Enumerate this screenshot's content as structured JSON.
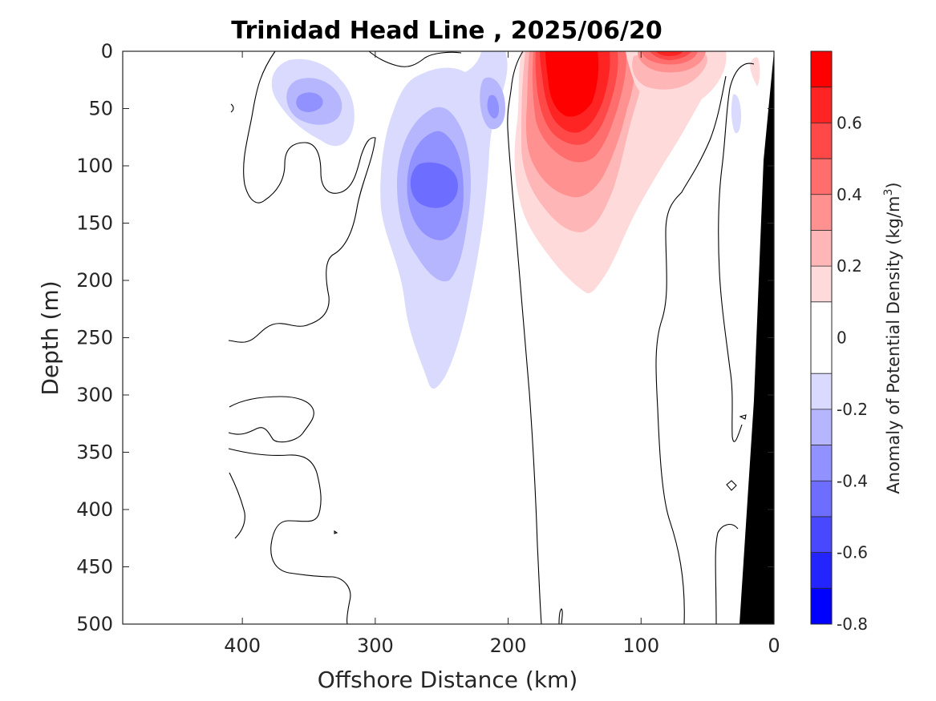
{
  "chart_data": {
    "type": "contour",
    "title": "Trinidad Head Line , 2025/06/20",
    "xlabel": "Offshore Distance (km)",
    "ylabel": "Depth (m)",
    "xlim": [
      490,
      0
    ],
    "ylim": [
      0,
      500
    ],
    "x_reversed": true,
    "y_reversed": true,
    "xticks": [
      400,
      300,
      200,
      100,
      0
    ],
    "yticks": [
      0,
      50,
      100,
      150,
      200,
      250,
      300,
      350,
      400,
      450,
      500
    ],
    "colorbar": {
      "label_main": "Anomaly of Potential Density (kg/m",
      "label_sup": "3",
      "label_close": ")",
      "levels": [
        -0.8,
        -0.7,
        -0.6,
        -0.5,
        -0.4,
        -0.3,
        -0.2,
        -0.1,
        0.1,
        0.2,
        0.3,
        0.4,
        0.5,
        0.6,
        0.7,
        0.8
      ],
      "bands": [
        {
          "from": -0.8,
          "to": -0.7,
          "color": "#0000ff"
        },
        {
          "from": -0.7,
          "to": -0.6,
          "color": "#2424ff"
        },
        {
          "from": -0.6,
          "to": -0.5,
          "color": "#4848ff"
        },
        {
          "from": -0.5,
          "to": -0.4,
          "color": "#6d6dff"
        },
        {
          "from": -0.4,
          "to": -0.3,
          "color": "#9191ff"
        },
        {
          "from": -0.3,
          "to": -0.2,
          "color": "#b6b6ff"
        },
        {
          "from": -0.2,
          "to": -0.1,
          "color": "#dadaff"
        },
        {
          "from": -0.1,
          "to": 0.0,
          "color": "#ffffff"
        },
        {
          "from": 0.0,
          "to": 0.1,
          "color": "#ffffff"
        },
        {
          "from": 0.1,
          "to": 0.2,
          "color": "#ffdada"
        },
        {
          "from": 0.2,
          "to": 0.3,
          "color": "#ffb6b6"
        },
        {
          "from": 0.3,
          "to": 0.4,
          "color": "#ff9191"
        },
        {
          "from": 0.4,
          "to": 0.5,
          "color": "#ff6d6d"
        },
        {
          "from": 0.5,
          "to": 0.6,
          "color": "#ff4848"
        },
        {
          "from": 0.6,
          "to": 0.7,
          "color": "#ff2424"
        },
        {
          "from": 0.7,
          "to": 0.8,
          "color": "#ff0000"
        }
      ],
      "ticks": [
        {
          "value": -0.8,
          "label": "-0.8"
        },
        {
          "value": -0.6,
          "label": "-0.6"
        },
        {
          "value": -0.4,
          "label": "-0.4"
        },
        {
          "value": -0.2,
          "label": "-0.2"
        },
        {
          "value": 0.0,
          "label": "0"
        },
        {
          "value": 0.2,
          "label": "0.2"
        },
        {
          "value": 0.4,
          "label": "0.4"
        },
        {
          "value": 0.6,
          "label": "0.6"
        }
      ]
    },
    "features": [
      {
        "name": "blob-neg-50km-depth50",
        "x": 350,
        "y": 50,
        "peak_anomaly": -0.3
      },
      {
        "name": "blob-neg-core-depth120",
        "x": 255,
        "y": 120,
        "peak_anomaly": -0.45
      },
      {
        "name": "blob-neg-210km-depth45",
        "x": 210,
        "y": 45,
        "peak_anomaly": -0.35
      },
      {
        "name": "blob-pos-core-depth40",
        "x": 155,
        "y": 40,
        "peak_anomaly": 0.75
      },
      {
        "name": "blob-pos-surface-80km",
        "x": 80,
        "y": 5,
        "peak_anomaly": 0.6
      }
    ],
    "shelf_color": "#000000",
    "colors": {
      "negative": "#0000ff",
      "positive": "#ff0000",
      "zero_line": "#000000"
    }
  }
}
